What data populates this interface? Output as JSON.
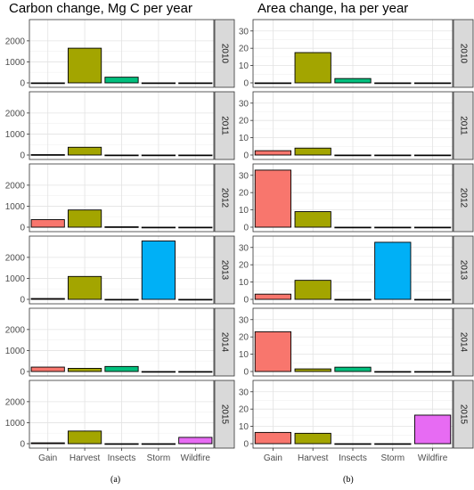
{
  "chart_data": [
    {
      "type": "bar",
      "title": "Carbon change, Mg C per year",
      "caption": "(a)",
      "categories": [
        "Gain",
        "Harvest",
        "Insects",
        "Storm",
        "Wildfire"
      ],
      "category_colors": [
        "#F8766D",
        "#A3A500",
        "#00BF7D",
        "#00B0F6",
        "#E76BF3"
      ],
      "ylim": [
        0,
        2800
      ],
      "yticks": [
        0,
        1000,
        2000
      ],
      "grid": true,
      "facets": [
        {
          "label": "2010",
          "values": [
            0,
            1650,
            270,
            0,
            0
          ]
        },
        {
          "label": "2011",
          "values": [
            20,
            370,
            0,
            0,
            0
          ]
        },
        {
          "label": "2012",
          "values": [
            360,
            820,
            20,
            0,
            0
          ]
        },
        {
          "label": "2013",
          "values": [
            40,
            1090,
            0,
            2780,
            0
          ]
        },
        {
          "label": "2014",
          "values": [
            210,
            150,
            240,
            0,
            0
          ]
        },
        {
          "label": "2015",
          "values": [
            40,
            600,
            0,
            0,
            300
          ]
        }
      ]
    },
    {
      "type": "bar",
      "title": "Area change, ha per year",
      "caption": "(b)",
      "categories": [
        "Gain",
        "Harvest",
        "Insects",
        "Storm",
        "Wildfire"
      ],
      "category_colors": [
        "#F8766D",
        "#A3A500",
        "#00BF7D",
        "#00B0F6",
        "#E76BF3"
      ],
      "ylim": [
        0,
        34
      ],
      "yticks": [
        0,
        10,
        20,
        30
      ],
      "grid": true,
      "facets": [
        {
          "label": "2010",
          "values": [
            0,
            17.5,
            2.5,
            0,
            0
          ]
        },
        {
          "label": "2011",
          "values": [
            2.5,
            4,
            0,
            0,
            0
          ]
        },
        {
          "label": "2012",
          "values": [
            33,
            9,
            0,
            0,
            0
          ]
        },
        {
          "label": "2013",
          "values": [
            3,
            11,
            0,
            33,
            0
          ]
        },
        {
          "label": "2014",
          "values": [
            23,
            1.5,
            2.5,
            0,
            0
          ]
        },
        {
          "label": "2015",
          "values": [
            6.5,
            6,
            0,
            0,
            16.5
          ]
        }
      ]
    }
  ]
}
